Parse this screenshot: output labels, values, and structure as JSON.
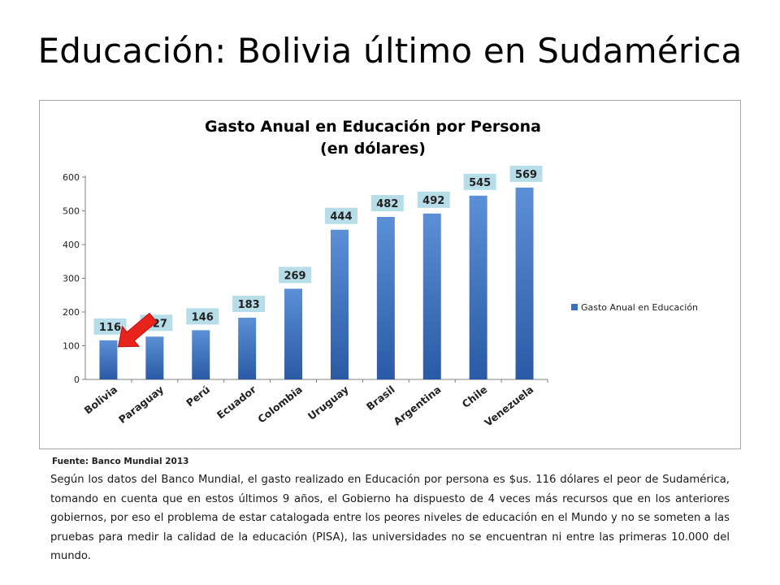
{
  "slide": {
    "title": "Educación: Bolivia último en Sudamérica",
    "source": "Fuente: Banco Mundial 2013",
    "body": "Según los datos del Banco Mundial, el gasto realizado en Educación por persona es $us. 116 dólares el peor de Sudamérica, tomando en cuenta que en estos últimos 9 años, el Gobierno ha dispuesto de 4 veces más recursos que en los anteriores gobiernos, por eso el problema de estar catalogada entre los peores niveles de educación en el Mundo y no se someten a las pruebas para medir la calidad de la educación (PISA), las universidades no se encuentran ni entre las primeras 10.000 del mundo."
  },
  "colors": {
    "bar_top": "#5b8fd6",
    "bar_bottom": "#2a5aa5",
    "label_bg": "#b7dde8",
    "arrow": "#e8231c",
    "axis": "#808080"
  },
  "icons": {
    "highlight": "red-arrow-icon",
    "legend": "legend-swatch-icon"
  },
  "chart_data": {
    "type": "bar",
    "title_line1": "Gasto Anual en Educación por Persona",
    "title_line2": "(en dólares)",
    "categories": [
      "Bolivia",
      "Paraguay",
      "Perú",
      "Ecuador",
      "Colombia",
      "Uruguay",
      "Brasil",
      "Argentina",
      "Chile",
      "Venezuela"
    ],
    "series": [
      {
        "name": "Gasto Anual en Educación",
        "values": [
          116,
          127,
          146,
          183,
          269,
          444,
          482,
          492,
          545,
          569
        ]
      }
    ],
    "value_labels": [
      "116",
      "127",
      "146",
      "183",
      "269",
      "444",
      "482",
      "492",
      "545",
      "569"
    ],
    "y_ticks": [
      "0",
      "100",
      "200",
      "300",
      "400",
      "500",
      "600"
    ],
    "ylim": [
      0,
      600
    ],
    "xlabel": "",
    "ylabel": "",
    "grid": false,
    "legend_position": "right",
    "highlight": "Bolivia"
  }
}
